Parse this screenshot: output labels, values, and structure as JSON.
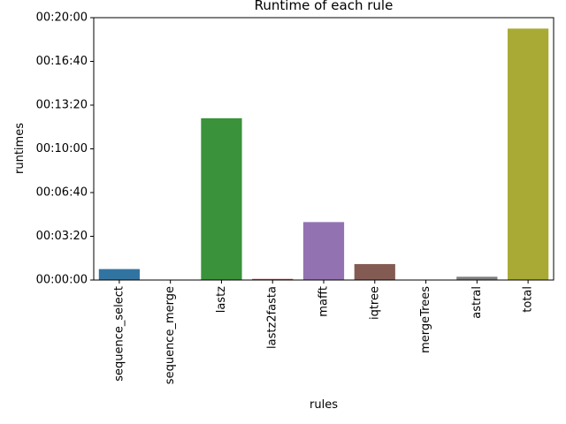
{
  "chart_data": {
    "type": "bar",
    "title": "Runtime of each rule",
    "xlabel": "rules",
    "ylabel": "runtimes",
    "categories": [
      "sequence_select",
      "sequence_merge",
      "lastz",
      "lastz2fasta",
      "mafft",
      "iqtree",
      "mergeTrees",
      "astral",
      "total"
    ],
    "values": [
      50,
      0,
      740,
      5,
      265,
      73,
      0,
      15,
      1150
    ],
    "colors": [
      "#3274a1",
      "#e1812c",
      "#3a923a",
      "#c03d3e",
      "#9372b2",
      "#845b53",
      "#d684bd",
      "#7f7f7f",
      "#a9aa35"
    ],
    "ylim": [
      0,
      1200
    ],
    "yticks": [
      0,
      200,
      400,
      600,
      800,
      1000,
      1200
    ],
    "ytick_labels": [
      "00:00:00",
      "00:03:20",
      "00:06:40",
      "00:10:00",
      "00:13:20",
      "00:16:40",
      "00:20:00"
    ],
    "grid": false,
    "legend": false
  }
}
